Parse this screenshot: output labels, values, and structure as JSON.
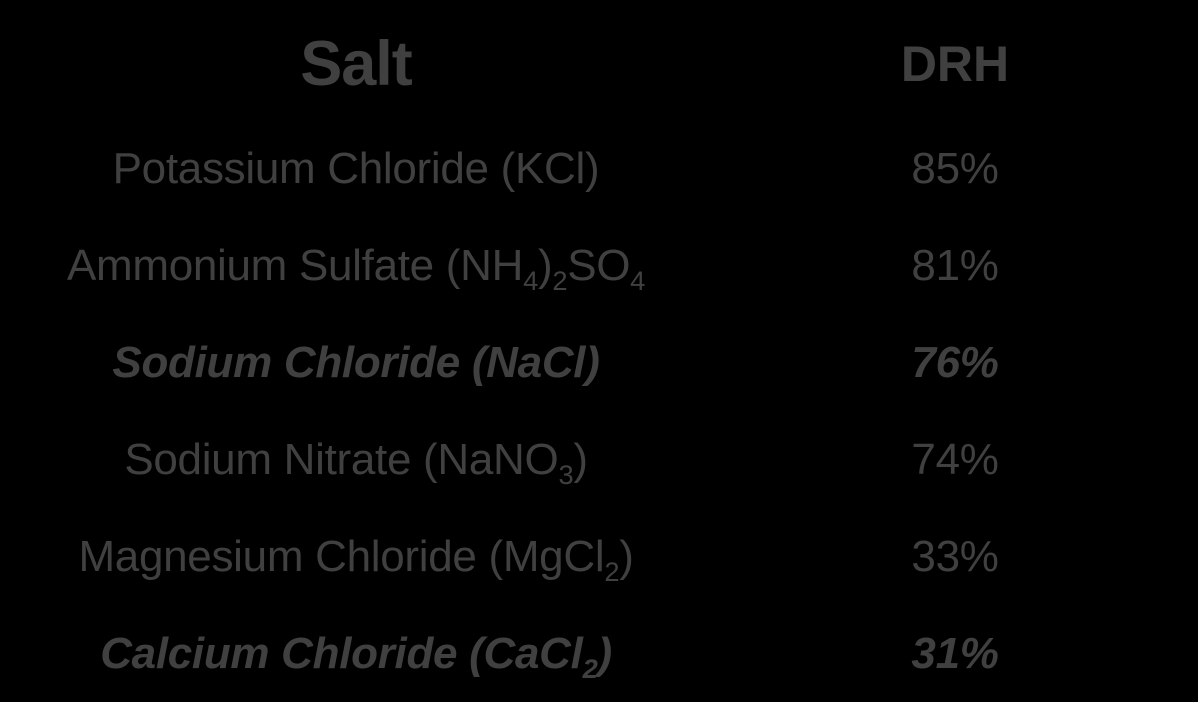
{
  "colors": {
    "background": "#000000",
    "text": "#404040"
  },
  "table": {
    "headers": [
      {
        "label": "Salt"
      },
      {
        "label": "DRH"
      }
    ],
    "rows": [
      {
        "salt": [
          {
            "t": "Potassium Chloride (KCl)"
          }
        ],
        "drh": "85%",
        "emphasis": false
      },
      {
        "salt": [
          {
            "t": "Ammonium Sulfate (NH"
          },
          {
            "t": "4",
            "sub": true
          },
          {
            "t": ")"
          },
          {
            "t": "2",
            "sub": true
          },
          {
            "t": "SO"
          },
          {
            "t": "4",
            "sub": true
          }
        ],
        "drh": "81%",
        "emphasis": false
      },
      {
        "salt": [
          {
            "t": "Sodium Chloride (NaCl)"
          }
        ],
        "drh": "76%",
        "emphasis": true
      },
      {
        "salt": [
          {
            "t": "Sodium Nitrate (NaNO"
          },
          {
            "t": "3",
            "sub": true
          },
          {
            "t": ")"
          }
        ],
        "drh": "74%",
        "emphasis": false
      },
      {
        "salt": [
          {
            "t": "Magnesium Chloride (MgCl"
          },
          {
            "t": "2",
            "sub": true
          },
          {
            "t": ")"
          }
        ],
        "drh": "33%",
        "emphasis": false
      },
      {
        "salt": [
          {
            "t": "Calcium Chloride (CaCl"
          },
          {
            "t": "2",
            "sub": true
          },
          {
            "t": ")"
          }
        ],
        "drh": "31%",
        "emphasis": true
      }
    ]
  },
  "chart_data": {
    "type": "table",
    "columns": [
      "Salt",
      "DRH"
    ],
    "rows": [
      [
        "Potassium Chloride (KCl)",
        "85%"
      ],
      [
        "Ammonium Sulfate (NH4)2SO4",
        "81%"
      ],
      [
        "Sodium Chloride (NaCl)",
        "76%"
      ],
      [
        "Sodium Nitrate (NaNO3)",
        "74%"
      ],
      [
        "Magnesium Chloride (MgCl2)",
        "33%"
      ],
      [
        "Calcium Chloride (CaCl2)",
        "31%"
      ]
    ],
    "values_percent": [
      85,
      81,
      76,
      74,
      33,
      31
    ],
    "emphasized_rows": [
      "Sodium Chloride (NaCl)",
      "Calcium Chloride (CaCl2)"
    ]
  }
}
